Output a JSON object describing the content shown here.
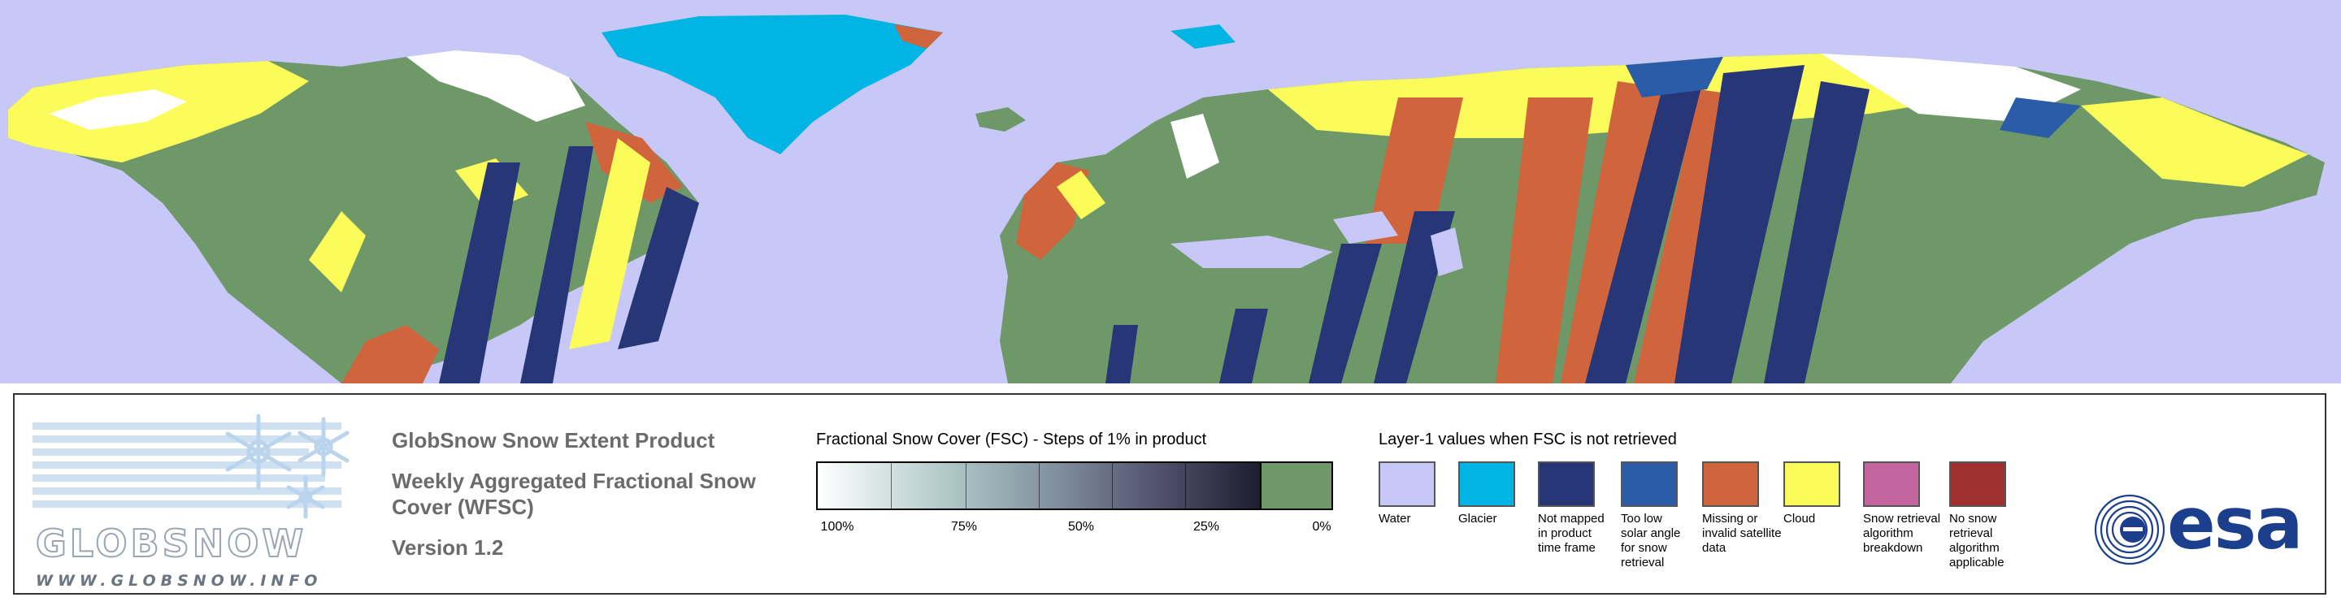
{
  "colors": {
    "water": "#c8c8f8",
    "glacier": "#00b4e4",
    "not_mapped": "#263676",
    "too_low_solar": "#2a5ca8",
    "missing": "#d0643c",
    "cloud": "#fbfb5a",
    "snow_breakdown": "#c465a0",
    "no_snow_applicable": "#a03030",
    "fsc_zero": "#6e9868"
  },
  "logo": {
    "wordmark": "GLOBSNOW",
    "url": "WWW.GLOBSNOW.INFO"
  },
  "product": {
    "title": "GlobSnow Snow Extent Product",
    "subtitle": "Weekly Aggregated Fractional Snow Cover (WFSC)",
    "version": "Version 1.2"
  },
  "fsc_scale": {
    "title": "Fractional Snow Cover (FSC) - Steps of 1% in product",
    "labels": [
      "100%",
      "75%",
      "50%",
      "25%",
      "0%"
    ]
  },
  "layer1": {
    "title": "Layer-1 values when FSC is not retrieved",
    "items": [
      {
        "label": "Water",
        "color": "#c8c8f8",
        "icon": "water-swatch"
      },
      {
        "label": "Glacier",
        "color": "#00b4e4",
        "icon": "glacier-swatch"
      },
      {
        "label": "Not mapped in product time frame",
        "color": "#263676",
        "icon": "not-mapped-swatch"
      },
      {
        "label": "Too low solar angle for snow retrieval",
        "color": "#2a5ca8",
        "icon": "low-solar-swatch"
      },
      {
        "label": "Missing or invalid satellite data",
        "color": "#d0643c",
        "icon": "missing-data-swatch"
      },
      {
        "label": "Cloud",
        "color": "#fbfb5a",
        "icon": "cloud-swatch"
      },
      {
        "label": "Snow retrieval algorithm breakdown",
        "color": "#c465a0",
        "icon": "breakdown-swatch"
      },
      {
        "label": "No snow retrieval algorithm applicable",
        "color": "#a03030",
        "icon": "no-algorithm-swatch"
      }
    ]
  },
  "esa": {
    "wordmark": "esa"
  }
}
